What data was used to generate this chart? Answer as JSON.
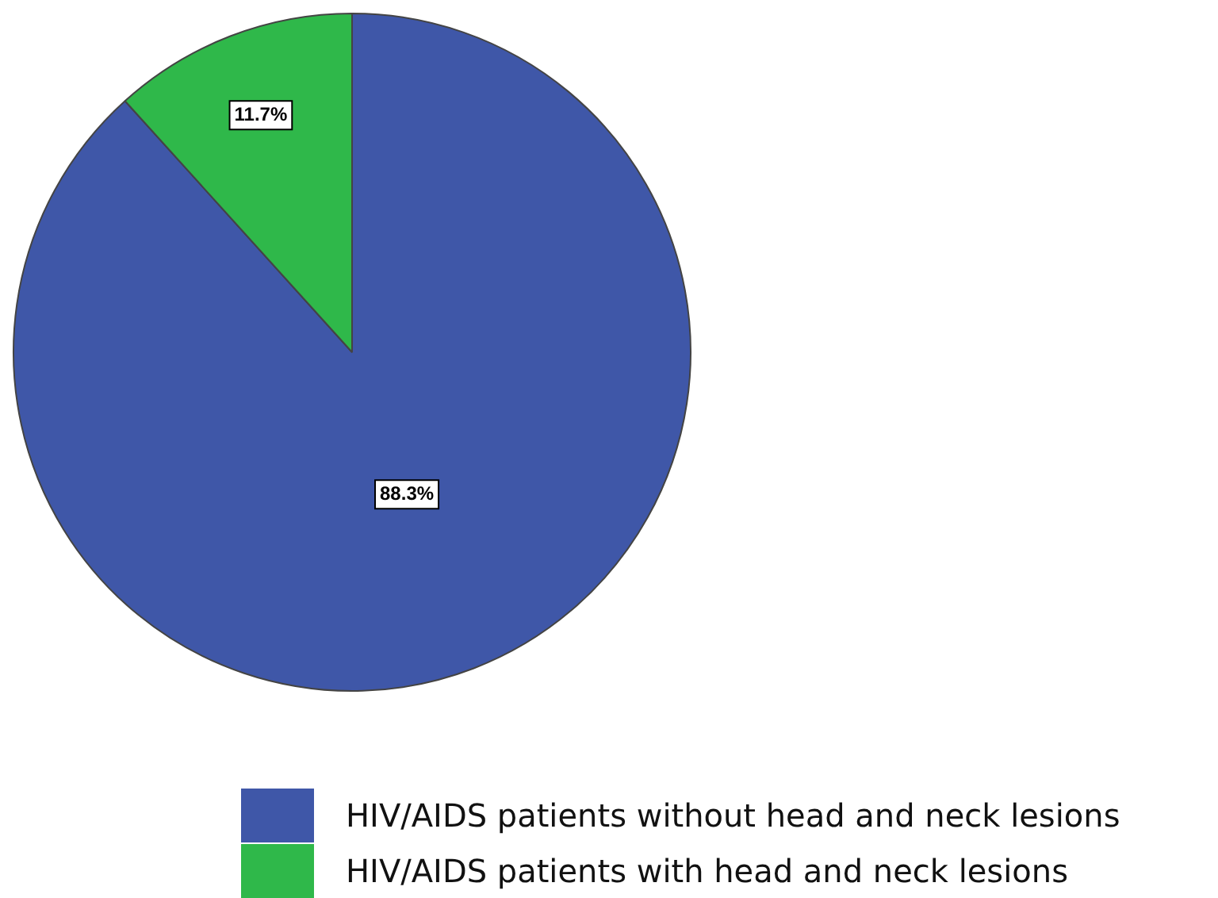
{
  "chart_data": {
    "type": "pie",
    "categories": [
      "HIV/AIDS patients without head and neck lesions",
      "HIV/AIDS patients with head and neck lesions"
    ],
    "values": [
      88.3,
      11.7
    ],
    "colors": [
      "#3f57a8",
      "#2fb84a"
    ],
    "value_labels": [
      "88.3%",
      "11.7%"
    ],
    "legend": "bottom"
  }
}
